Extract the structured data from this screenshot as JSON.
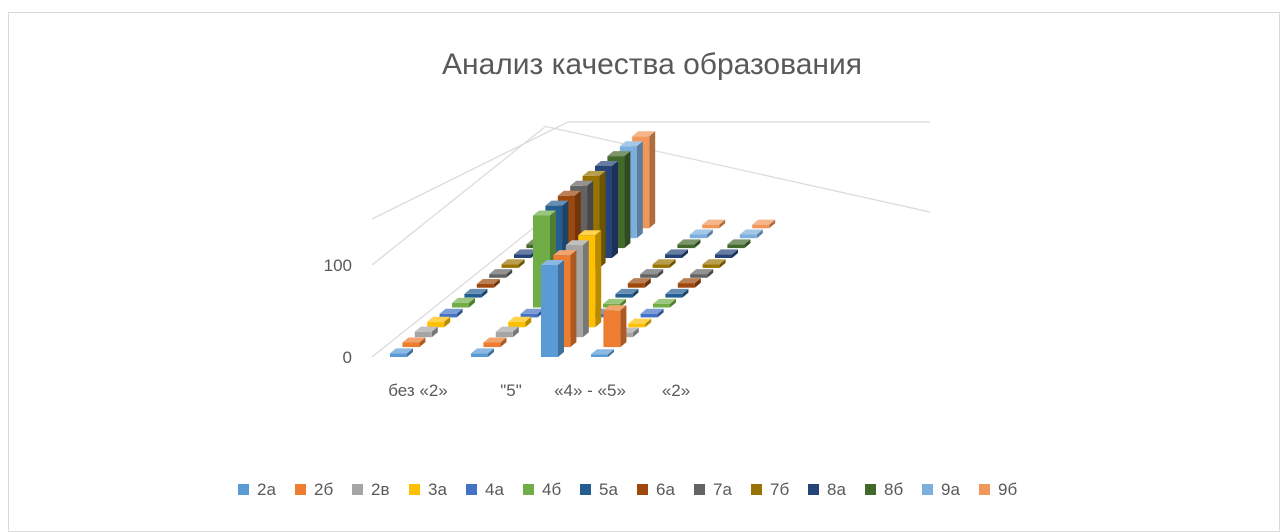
{
  "chart_data": {
    "type": "bar",
    "title": "Анализ качества образования",
    "categories": [
      "без «2»",
      "\"5\"",
      "«4» - «5»",
      "«2»"
    ],
    "y_ticks": [
      "0",
      "100"
    ],
    "ylim": [
      0,
      150
    ],
    "grid": true,
    "legend_position": "bottom",
    "series": [
      {
        "name": "2а",
        "color": "#5b9bd5",
        "values": [
          4,
          4,
          100,
          3
        ]
      },
      {
        "name": "2б",
        "color": "#ed7d31",
        "values": [
          5,
          5,
          100,
          40
        ]
      },
      {
        "name": "2в",
        "color": "#a5a5a5",
        "values": [
          6,
          6,
          100,
          5
        ]
      },
      {
        "name": "3а",
        "color": "#ffc000",
        "values": [
          6,
          6,
          100,
          4
        ]
      },
      {
        "name": "4а",
        "color": "#4472c4",
        "values": [
          4,
          4,
          4,
          4
        ]
      },
      {
        "name": "4б",
        "color": "#70ad47",
        "values": [
          5,
          100,
          4,
          4
        ]
      },
      {
        "name": "5а",
        "color": "#255e91",
        "values": [
          4,
          100,
          4,
          4
        ]
      },
      {
        "name": "6а",
        "color": "#9e480e",
        "values": [
          4,
          100,
          5,
          5
        ]
      },
      {
        "name": "7а",
        "color": "#636363",
        "values": [
          4,
          100,
          4,
          4
        ]
      },
      {
        "name": "7б",
        "color": "#997300",
        "values": [
          4,
          100,
          4,
          4
        ]
      },
      {
        "name": "8а",
        "color": "#264478",
        "values": [
          4,
          100,
          4,
          4
        ]
      },
      {
        "name": "8б",
        "color": "#43682b",
        "values": [
          4,
          100,
          4,
          4
        ]
      },
      {
        "name": "9а",
        "color": "#7cafdd",
        "values": [
          4,
          100,
          4,
          4
        ]
      },
      {
        "name": "9б",
        "color": "#f1975a",
        "values": [
          4,
          100,
          4,
          4
        ]
      }
    ]
  }
}
